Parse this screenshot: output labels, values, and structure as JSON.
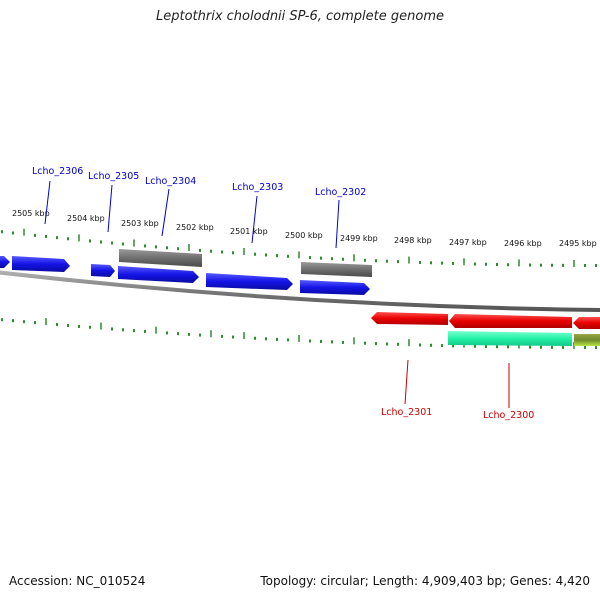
{
  "title": "Leptothrix cholodnii SP-6, complete genome",
  "accession": "Accession: NC_010524",
  "stats": "Topology: circular; Length: 4,909,403 bp; Genes: 4,420",
  "colors": {
    "tick": "#2e8b2e",
    "backbone": "#8a8a8a",
    "cds_forward": "#1414e6",
    "rna_gray": "#6f6f6f",
    "cds_reverse": "#e80000",
    "reverse_extra": "#22f2a8",
    "reverse_extra_2": "#a8d84a",
    "label_forward": "#0000cc",
    "label_reverse": "#cc0000"
  },
  "kbp_labels": [
    "2505 kbp",
    "2504 kbp",
    "2503 kbp",
    "2502 kbp",
    "2501 kbp",
    "2500 kbp",
    "2499 kbp",
    "2498 kbp",
    "2497 kbp",
    "2496 kbp",
    "2495 kbp"
  ],
  "gene_labels_forward": [
    "Lcho_2306",
    "Lcho_2305",
    "Lcho_2304",
    "Lcho_2303",
    "Lcho_2302"
  ],
  "gene_labels_reverse": [
    "Lcho_2301",
    "Lcho_2300"
  ]
}
